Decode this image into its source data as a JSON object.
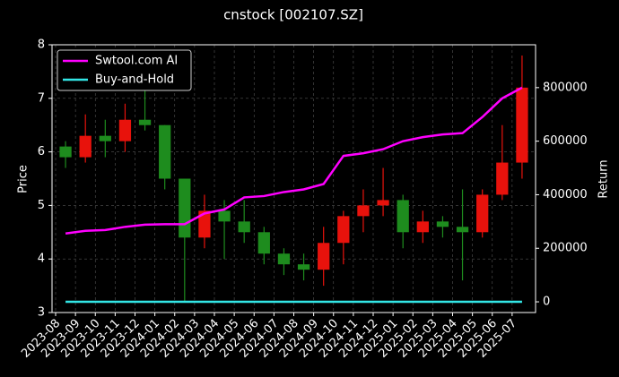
{
  "chart_data": {
    "type": "candlestick",
    "title": "cnstock [002107.SZ]",
    "ylabel": "Price",
    "y2label": "Return",
    "x": [
      "2023-08",
      "2023-09",
      "2023-10",
      "2023-11",
      "2023-12",
      "2024-01",
      "2024-02",
      "2024-03",
      "2024-04",
      "2024-05",
      "2024-06",
      "2024-07",
      "2024-08",
      "2024-09",
      "2024-10",
      "2024-11",
      "2024-12",
      "2025-01",
      "2025-02",
      "2025-03",
      "2025-04",
      "2025-05",
      "2025-06",
      "2025-07"
    ],
    "open": [
      6.1,
      5.9,
      6.3,
      6.2,
      6.6,
      6.5,
      5.5,
      4.4,
      4.9,
      4.7,
      4.5,
      4.1,
      3.9,
      3.8,
      4.3,
      4.8,
      5.0,
      5.1,
      4.5,
      4.7,
      4.6,
      4.5,
      5.2,
      5.8
    ],
    "high": [
      6.2,
      6.7,
      6.6,
      6.9,
      7.3,
      6.5,
      5.5,
      5.2,
      5.1,
      5.1,
      4.6,
      4.2,
      4.1,
      4.6,
      4.9,
      5.3,
      5.7,
      5.2,
      4.9,
      4.8,
      5.3,
      5.3,
      6.5,
      7.8
    ],
    "low": [
      5.7,
      5.8,
      5.9,
      6.0,
      6.4,
      5.3,
      3.2,
      4.2,
      4.0,
      4.3,
      3.9,
      3.7,
      3.6,
      3.5,
      3.9,
      4.5,
      4.8,
      4.2,
      4.3,
      4.4,
      3.6,
      4.4,
      5.1,
      5.5
    ],
    "close": [
      5.9,
      6.3,
      6.2,
      6.6,
      6.5,
      5.5,
      4.4,
      4.9,
      4.7,
      4.5,
      4.1,
      3.9,
      3.8,
      4.3,
      4.8,
      5.0,
      5.1,
      4.5,
      4.7,
      4.6,
      4.5,
      5.2,
      5.8,
      7.2
    ],
    "up_color": "#e8120c",
    "down_color": "#1e8c1e",
    "series": [
      {
        "name": "Swtool.com AI",
        "color": "#ff00ff",
        "axis": "y2",
        "values": [
          255000,
          265000,
          268000,
          280000,
          288000,
          290000,
          290000,
          330000,
          345000,
          390000,
          395000,
          410000,
          420000,
          440000,
          545000,
          555000,
          570000,
          600000,
          615000,
          625000,
          630000,
          690000,
          760000,
          800000
        ]
      },
      {
        "name": "Buy-and-Hold",
        "color": "#33e6e6",
        "axis": "y2",
        "values": [
          0,
          0,
          0,
          0,
          0,
          0,
          0,
          0,
          0,
          0,
          0,
          0,
          0,
          0,
          0,
          0,
          0,
          0,
          0,
          0,
          0,
          0,
          0,
          0
        ]
      }
    ],
    "xlim": [
      "2023-08",
      "2025-08"
    ],
    "xticks": [
      "2023-08",
      "2023-09",
      "2023-10",
      "2023-11",
      "2023-12",
      "2024-01",
      "2024-02",
      "2024-03",
      "2024-04",
      "2024-05",
      "2024-06",
      "2024-07",
      "2024-08",
      "2024-09",
      "2024-10",
      "2024-11",
      "2024-12",
      "2025-01",
      "2025-02",
      "2025-03",
      "2025-04",
      "2025-05",
      "2025-06",
      "2025-07"
    ],
    "ylim": [
      3,
      8
    ],
    "yticks": [
      3,
      4,
      5,
      6,
      7,
      8
    ],
    "y2lim": [
      -40000,
      960000
    ],
    "y2ticks": [
      0,
      200000,
      400000,
      600000,
      800000
    ],
    "grid": true,
    "legend": "upper left"
  }
}
